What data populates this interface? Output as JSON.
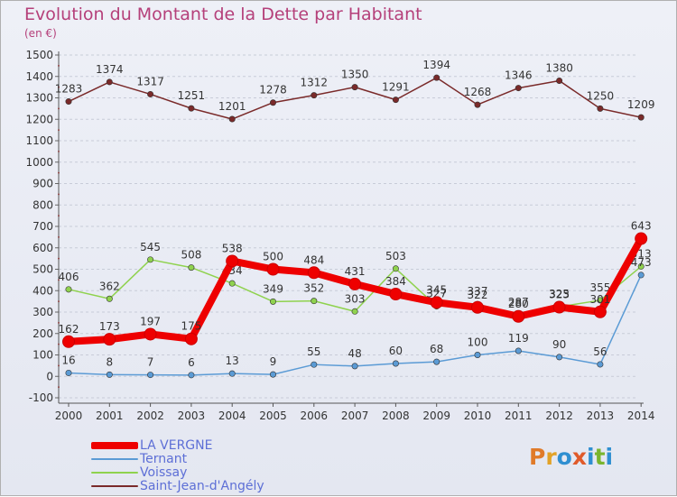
{
  "title": "Evolution du Montant de la Dette par Habitant",
  "subtitle": "(en €)",
  "logo": {
    "text": "Proxiti",
    "letter_colors": [
      "#e07b2a",
      "#e2a227",
      "#2f8fd1",
      "#e05a2a",
      "#2f8fd1",
      "#7ab52e",
      "#2f8fd1"
    ]
  },
  "chart_data": {
    "type": "line",
    "x": [
      2000,
      2001,
      2002,
      2003,
      2004,
      2005,
      2006,
      2007,
      2008,
      2009,
      2010,
      2011,
      2012,
      2013,
      2014
    ],
    "x_tick_labels": [
      "2000",
      "2001",
      "2002",
      "2003",
      "2004",
      "2005",
      "2006",
      "2007",
      "2008",
      "2009",
      "2010",
      "2011",
      "2012",
      "2013",
      "2014"
    ],
    "ylim": [
      -100,
      1500
    ],
    "y_ticks": [
      -100,
      0,
      100,
      200,
      300,
      400,
      500,
      600,
      700,
      800,
      900,
      1000,
      1100,
      1200,
      1300,
      1400,
      1500
    ],
    "y_tick_labels": [
      "-100",
      "0",
      "100",
      "200",
      "300",
      "400",
      "500",
      "600",
      "700",
      "800",
      "900",
      "1000",
      "1100",
      "1200",
      "1300",
      "1400",
      "1500"
    ],
    "grid": "horizontal dashed",
    "legend_position": "bottom-left",
    "series": [
      {
        "name": "Saint-Jean-d'Angély",
        "color": "#7a2a2a",
        "values": [
          1283,
          1374,
          1317,
          1251,
          1201,
          1278,
          1312,
          1350,
          1291,
          1394,
          1268,
          1346,
          1380,
          1250,
          1209
        ],
        "labels": [
          "1283",
          "1374",
          "1317",
          "1251",
          "1201",
          "1278",
          "1312",
          "1350",
          "1291",
          "1394",
          "1268",
          "1346",
          "1380",
          "1250",
          "1209"
        ]
      },
      {
        "name": "Voissay",
        "color": "#8fd24e",
        "values": [
          406,
          362,
          545,
          508,
          434,
          349,
          352,
          303,
          503,
          327,
          337,
          287,
          325,
          355,
          513
        ],
        "labels": [
          "406",
          "362",
          "545",
          "508",
          "434",
          "349",
          "352",
          "303",
          "503",
          "327",
          "337",
          "287",
          "325",
          "355",
          "513"
        ]
      },
      {
        "name": "Ternant",
        "color": "#5b9bd5",
        "values": [
          16,
          8,
          7,
          6,
          13,
          9,
          55,
          48,
          60,
          68,
          100,
          119,
          90,
          56,
          473
        ],
        "labels": [
          "16",
          "8",
          "7",
          "6",
          "13",
          "9",
          "55",
          "48",
          "60",
          "68",
          "100",
          "119",
          "90",
          "56",
          "473"
        ]
      },
      {
        "name": "LA VERGNE",
        "color": "#ee0000",
        "values": [
          162,
          173,
          197,
          175,
          538,
          500,
          484,
          431,
          384,
          345,
          322,
          280,
          323,
          301,
          643
        ],
        "labels": [
          "162",
          "173",
          "197",
          "175",
          "538",
          "500",
          "484",
          "431",
          "384",
          "345",
          "322",
          "280",
          "323",
          "301",
          "643"
        ]
      }
    ]
  }
}
